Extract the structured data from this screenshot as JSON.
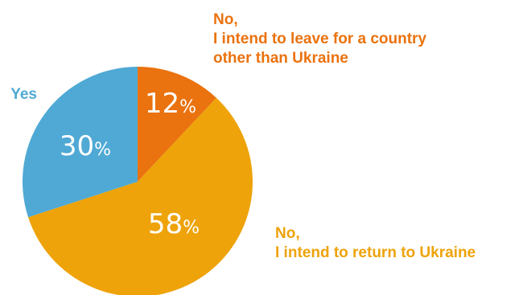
{
  "chart_data": {
    "type": "pie",
    "title": "",
    "slices": [
      {
        "label_lines": [
          "No,",
          "I intend to leave for a country",
          "other than Ukraine"
        ],
        "value": 12,
        "color": "#ea720f"
      },
      {
        "label_lines": [
          "No,",
          "I intend to return to Ukraine"
        ],
        "value": 58,
        "color": "#eea30a"
      },
      {
        "label_lines": [
          "Yes"
        ],
        "value": 30,
        "color": "#4fa9d4"
      }
    ],
    "percent_suffix": "%",
    "legend": "labels beside slices"
  }
}
